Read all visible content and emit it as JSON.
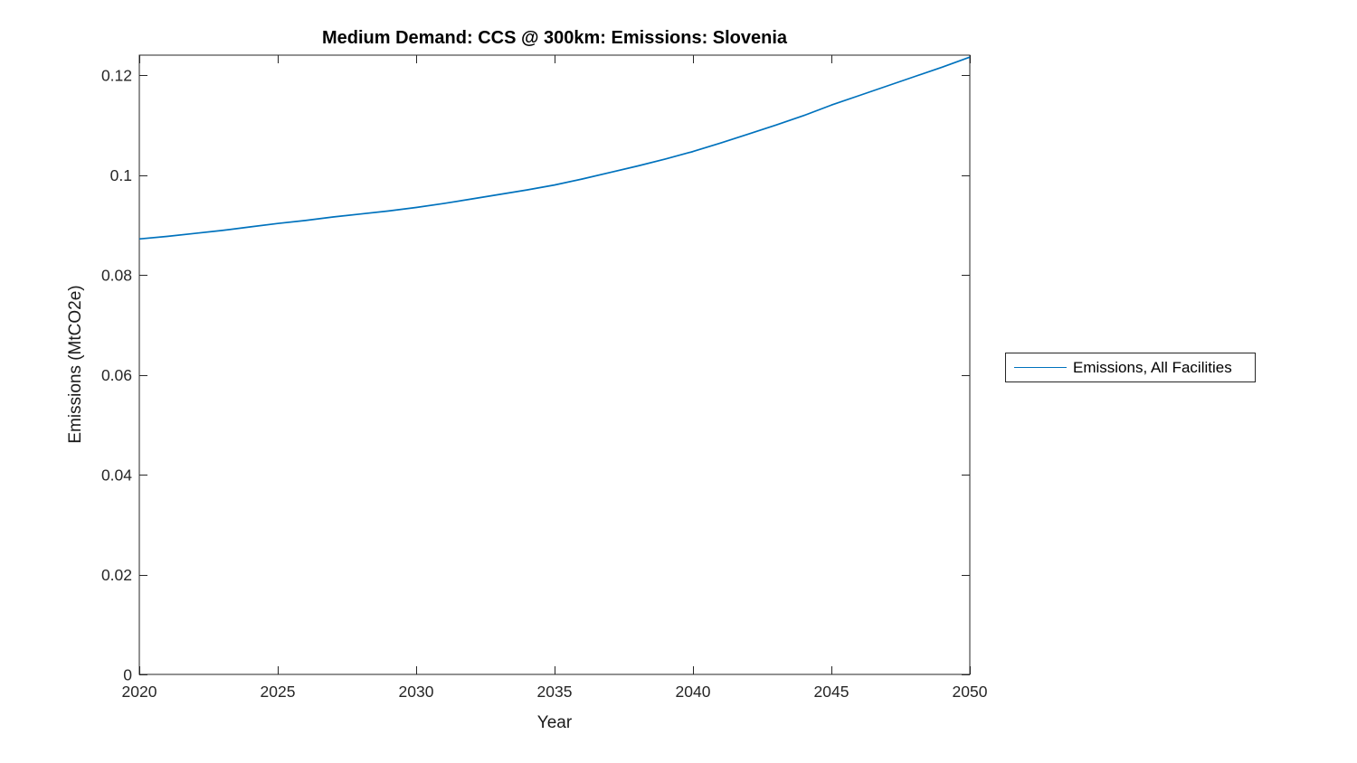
{
  "figure": {
    "background": "#ffffff",
    "axis_color": "#262626"
  },
  "chart_data": {
    "type": "line",
    "title": "Medium Demand: CCS @ 300km: Emissions: Slovenia",
    "xlabel": "Year",
    "ylabel": "Emissions (MtCO2e)",
    "xlim": [
      2020,
      2050
    ],
    "ylim": [
      0,
      0.124
    ],
    "x_ticks": [
      2020,
      2025,
      2030,
      2035,
      2040,
      2045,
      2050
    ],
    "x_tick_labels": [
      "2020",
      "2025",
      "2030",
      "2035",
      "2040",
      "2045",
      "2050"
    ],
    "y_ticks": [
      0,
      0.02,
      0.04,
      0.06,
      0.08,
      0.1,
      0.12
    ],
    "y_tick_labels": [
      "0",
      "0.02",
      "0.04",
      "0.06",
      "0.08",
      "0.1",
      "0.12"
    ],
    "grid": false,
    "legend": {
      "position": "outside-right",
      "entries": [
        {
          "label": "Emissions, All Facilities",
          "color": "#0072BD"
        }
      ]
    },
    "series": [
      {
        "name": "Emissions, All Facilities",
        "color": "#0072BD",
        "line_width": 1.7,
        "x": [
          2020,
          2021,
          2022,
          2023,
          2024,
          2025,
          2026,
          2027,
          2028,
          2029,
          2030,
          2031,
          2032,
          2033,
          2034,
          2035,
          2036,
          2037,
          2038,
          2039,
          2040,
          2041,
          2042,
          2043,
          2044,
          2045,
          2046,
          2047,
          2048,
          2049,
          2050
        ],
        "y": [
          0.0872,
          0.0877,
          0.0883,
          0.0889,
          0.0896,
          0.0903,
          0.0909,
          0.0916,
          0.0922,
          0.0928,
          0.0935,
          0.0943,
          0.0952,
          0.0961,
          0.097,
          0.098,
          0.0992,
          0.1005,
          0.1018,
          0.1032,
          0.1047,
          0.1064,
          0.1082,
          0.11,
          0.1119,
          0.114,
          0.1159,
          0.1178,
          0.1197,
          0.1216,
          0.1236
        ]
      }
    ]
  }
}
